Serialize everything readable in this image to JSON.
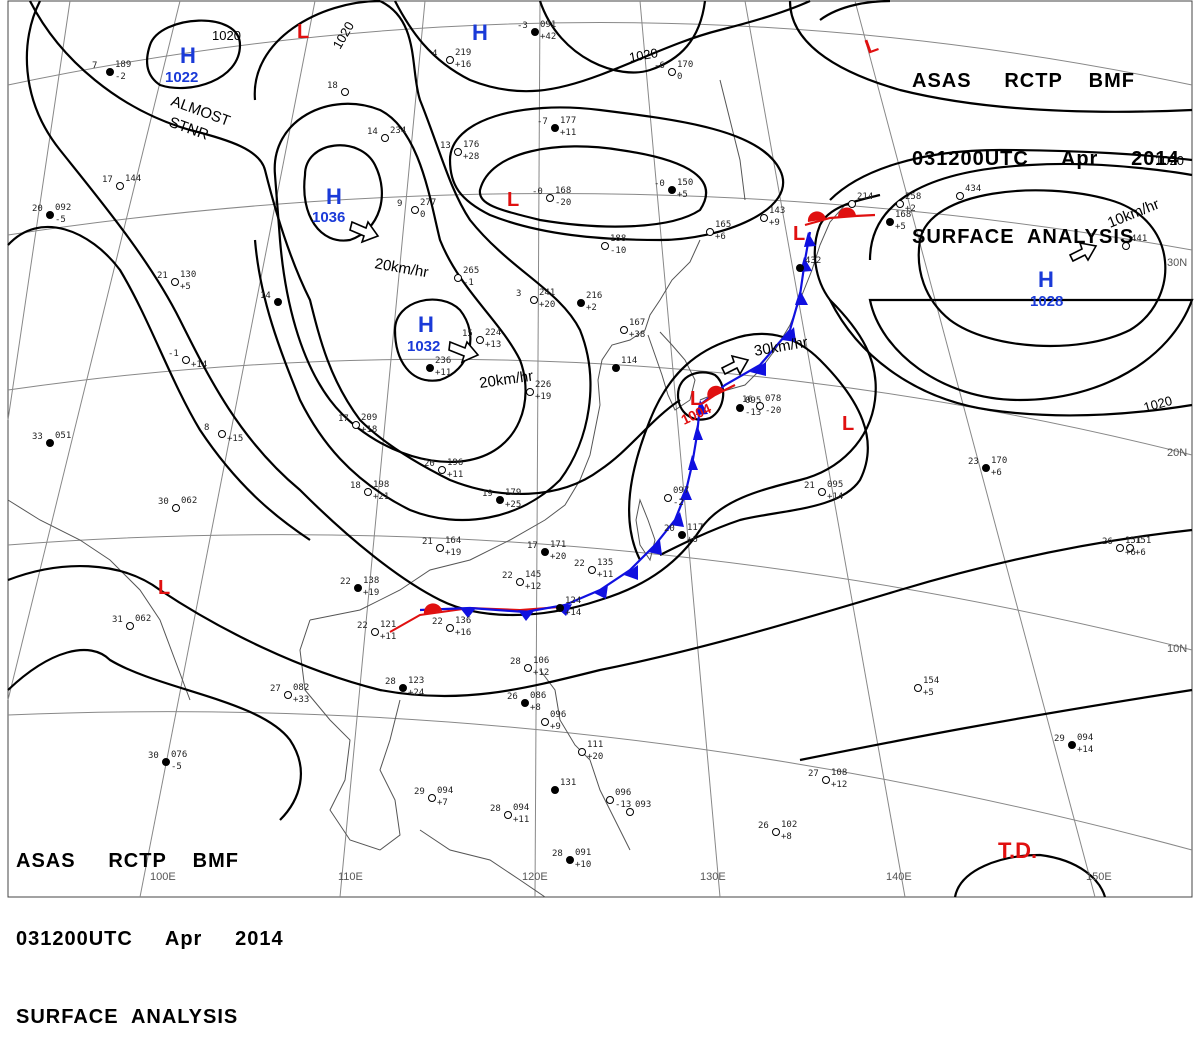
{
  "header": {
    "line1": "ASAS     RCTP    BMF",
    "line2": "031200UTC     Apr     2014",
    "line3": "SURFACE  ANALYSIS"
  },
  "colors": {
    "high": "#1a3ad8",
    "low": "#e01010",
    "isobar": "#000000",
    "grid": "#888888",
    "coast": "#555555",
    "cold_front": "#1010e0",
    "warm_front": "#e01010"
  },
  "pressure_systems": [
    {
      "id": "H1",
      "type": "H",
      "value": "1022"
    },
    {
      "id": "H2",
      "type": "H",
      "value": "1036",
      "motion": "20km/hr"
    },
    {
      "id": "H3",
      "type": "H",
      "value": "1032",
      "motion": "20km/hr"
    },
    {
      "id": "H4",
      "type": "H",
      "value": ""
    },
    {
      "id": "H5",
      "type": "H",
      "value": "1028",
      "motion": "10km/hr"
    },
    {
      "id": "L1",
      "type": "L",
      "value": ""
    },
    {
      "id": "L2",
      "type": "L",
      "value": ""
    },
    {
      "id": "L3",
      "type": "L",
      "value": ""
    },
    {
      "id": "L4",
      "type": "L",
      "value": "1004",
      "motion": "30km/hr"
    },
    {
      "id": "L5",
      "type": "L",
      "value": ""
    },
    {
      "id": "L6",
      "type": "L",
      "value": ""
    },
    {
      "id": "L7",
      "type": "L",
      "value": ""
    }
  ],
  "isobar_labels": [
    "1020",
    "1020",
    "1020",
    "1020",
    "1020"
  ],
  "notes": [
    "ALMOST",
    "STNR"
  ],
  "special": {
    "td": "T.D."
  },
  "longitude_labels": [
    "100E",
    "110E",
    "120E",
    "130E",
    "140E",
    "150E"
  ],
  "latitude_labels": [
    "30N",
    "20N",
    "10N"
  ],
  "stations": [
    {
      "t": "7",
      "p": "189",
      "d": "-2"
    },
    {
      "t": "18",
      "p": "",
      "d": ""
    },
    {
      "t": "4",
      "p": "219",
      "d": "+16"
    },
    {
      "t": "-3",
      "p": "091",
      "d": "+42"
    },
    {
      "t": "17",
      "p": "144",
      "d": ""
    },
    {
      "t": "14",
      "p": "234",
      "d": ""
    },
    {
      "t": "20",
      "p": "092",
      "d": "-5"
    },
    {
      "t": "9",
      "p": "277",
      "d": "0"
    },
    {
      "t": "13",
      "p": "176",
      "d": "+28"
    },
    {
      "t": "-7",
      "p": "177",
      "d": "+11"
    },
    {
      "t": "-6",
      "p": "170",
      "d": "0"
    },
    {
      "t": "-0",
      "p": "168",
      "d": "-20"
    },
    {
      "t": "-0",
      "p": "150",
      "d": "+5"
    },
    {
      "t": "",
      "p": "188",
      "d": "-10"
    },
    {
      "t": "21",
      "p": "130",
      "d": "+5"
    },
    {
      "t": "14",
      "p": "",
      "d": ""
    },
    {
      "t": "",
      "p": "265",
      "d": "-1"
    },
    {
      "t": "3",
      "p": "241",
      "d": "+20"
    },
    {
      "t": "",
      "p": "216",
      "d": "+2"
    },
    {
      "t": "15",
      "p": "224",
      "d": "+13"
    },
    {
      "t": "-1",
      "p": "",
      "d": "+14"
    },
    {
      "t": "",
      "p": "236",
      "d": "+11"
    },
    {
      "t": "",
      "p": "226",
      "d": "+19"
    },
    {
      "t": "",
      "p": "167",
      "d": "+38"
    },
    {
      "t": "",
      "p": "114",
      "d": ""
    },
    {
      "t": "17",
      "p": "209",
      "d": "+18"
    },
    {
      "t": "8",
      "p": "",
      "d": "+15"
    },
    {
      "t": "33",
      "p": "051",
      "d": ""
    },
    {
      "t": "20",
      "p": "196",
      "d": "+11"
    },
    {
      "t": "18",
      "p": "198",
      "d": "+21"
    },
    {
      "t": "19",
      "p": "179",
      "d": "+25"
    },
    {
      "t": "30",
      "p": "062",
      "d": ""
    },
    {
      "t": "21",
      "p": "164",
      "d": "+19"
    },
    {
      "t": "17",
      "p": "171",
      "d": "+20"
    },
    {
      "t": "22",
      "p": "145",
      "d": "+12"
    },
    {
      "t": "22",
      "p": "135",
      "d": "+11"
    },
    {
      "t": "22",
      "p": "138",
      "d": "+19"
    },
    {
      "t": "22",
      "p": "121",
      "d": "+11"
    },
    {
      "t": "22",
      "p": "136",
      "d": "+16"
    },
    {
      "t": "",
      "p": "124",
      "d": "+14"
    },
    {
      "t": "31",
      "p": "062",
      "d": ""
    },
    {
      "t": "",
      "p": "097",
      "d": "-2"
    },
    {
      "t": "20",
      "p": "117",
      "d": "+6"
    },
    {
      "t": "",
      "p": "165",
      "d": "+6"
    },
    {
      "t": "",
      "p": "143",
      "d": "+9"
    },
    {
      "t": "",
      "p": "095",
      "d": "-13"
    },
    {
      "t": "16",
      "p": "078",
      "d": "-20"
    },
    {
      "t": "21",
      "p": "095",
      "d": "+14"
    },
    {
      "t": "23",
      "p": "170",
      "d": "+6"
    },
    {
      "t": "",
      "p": "258",
      "d": "+2"
    },
    {
      "t": "",
      "p": "214",
      "d": ""
    },
    {
      "t": "",
      "p": "168",
      "d": "+5"
    },
    {
      "t": "",
      "p": "151",
      "d": "+6"
    },
    {
      "t": "",
      "p": "154",
      "d": "+5"
    },
    {
      "t": "28",
      "p": "123",
      "d": "+24"
    },
    {
      "t": "27",
      "p": "082",
      "d": "+33"
    },
    {
      "t": "28",
      "p": "106",
      "d": "+12"
    },
    {
      "t": "26",
      "p": "086",
      "d": "+8"
    },
    {
      "t": "",
      "p": "096",
      "d": "+9"
    },
    {
      "t": "",
      "p": "111",
      "d": "+20"
    },
    {
      "t": "30",
      "p": "076",
      "d": "-5"
    },
    {
      "t": "29",
      "p": "094",
      "d": "+7"
    },
    {
      "t": "28",
      "p": "094",
      "d": "+11"
    },
    {
      "t": "",
      "p": "131",
      "d": ""
    },
    {
      "t": "",
      "p": "096",
      "d": "-13"
    },
    {
      "t": "",
      "p": "093",
      "d": ""
    },
    {
      "t": "28",
      "p": "091",
      "d": "+10"
    },
    {
      "t": "27",
      "p": "108",
      "d": "+12"
    },
    {
      "t": "26",
      "p": "102",
      "d": "+8"
    },
    {
      "t": "29",
      "p": "094",
      "d": "+14"
    },
    {
      "t": "26",
      "p": "151",
      "d": "+6"
    },
    {
      "t": "",
      "p": "434",
      "d": ""
    },
    {
      "t": "",
      "p": "432",
      "d": ""
    },
    {
      "t": "",
      "p": "441",
      "d": ""
    }
  ]
}
